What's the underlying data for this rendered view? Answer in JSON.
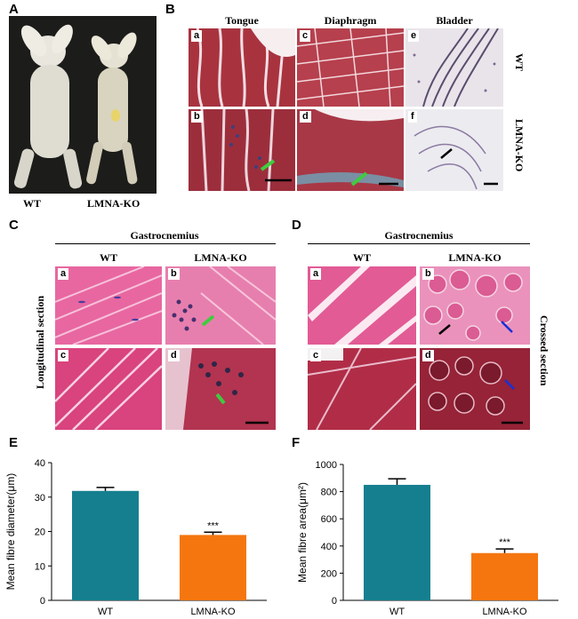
{
  "panels": {
    "A": {
      "label": "A",
      "wt": "WT",
      "ko": "LMNA-KO"
    },
    "B": {
      "label": "B",
      "cols": [
        "Tongue",
        "Diaphragm",
        "Bladder"
      ],
      "rows": [
        "WT",
        "LMNA-KO"
      ],
      "tags": [
        "a",
        "b",
        "c",
        "d",
        "e",
        "f"
      ]
    },
    "C": {
      "label": "C",
      "title": "Gastrocnemius",
      "wt": "WT",
      "ko": "LMNA-KO",
      "side": "Longitudinal section",
      "tags": [
        "a",
        "b",
        "c",
        "d"
      ]
    },
    "D": {
      "label": "D",
      "title": "Gastrocnemius",
      "wt": "WT",
      "ko": "LMNA-KO",
      "side": "Crossed section",
      "tags": [
        "a",
        "b",
        "c",
        "d"
      ]
    },
    "E": {
      "label": "E"
    },
    "F": {
      "label": "F"
    }
  },
  "colors": {
    "wt_bar": "#157f8f",
    "ko_bar": "#f5760f"
  },
  "chart_data": [
    {
      "type": "bar",
      "categories": [
        "WT",
        "LMNA-KO"
      ],
      "values": [
        31.8,
        19.0
      ],
      "errors": [
        1.0,
        0.8
      ],
      "ylabel": "Mean fibre diameter(μm)",
      "ylim": [
        0,
        40
      ],
      "yticks": [
        0,
        10,
        20,
        30,
        40
      ],
      "annotation": "***"
    },
    {
      "type": "bar",
      "categories": [
        "WT",
        "LMNA-KO"
      ],
      "values": [
        850,
        348
      ],
      "errors": [
        45,
        30
      ],
      "ylabel": "Mean fibre area(μm²)",
      "ylim": [
        0,
        1000
      ],
      "yticks": [
        0,
        200,
        400,
        600,
        800,
        1000
      ],
      "annotation": "***"
    }
  ]
}
